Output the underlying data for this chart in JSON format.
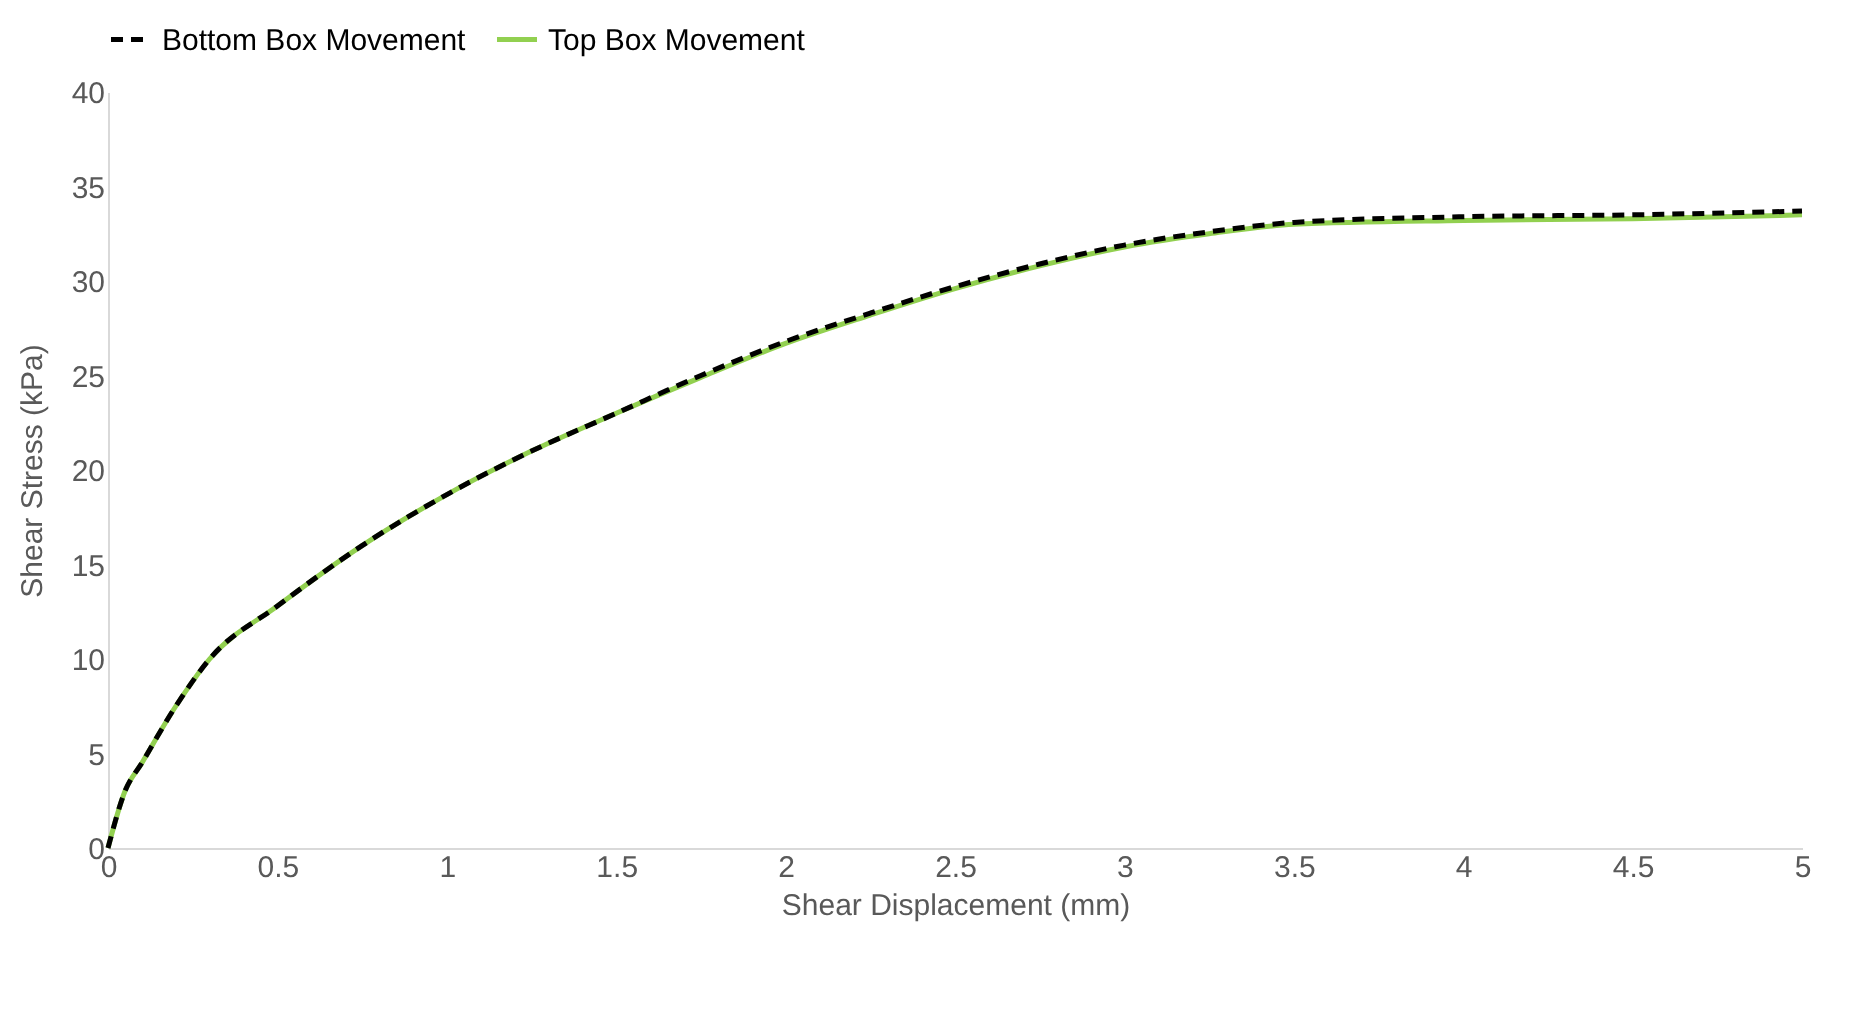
{
  "chart_data": {
    "type": "line",
    "xlabel": "Shear Displacement (mm)",
    "ylabel": "Shear Stress (kPa)",
    "xlim": [
      0,
      5
    ],
    "xticks": [
      0,
      0.5,
      1,
      1.5,
      2,
      2.5,
      3,
      3.5,
      4,
      4.5,
      5
    ],
    "ylim": [
      0,
      40
    ],
    "yticks": [
      0,
      5,
      10,
      15,
      20,
      25,
      30,
      35,
      40
    ],
    "grid": false,
    "legend": "top",
    "marker": "none",
    "x": [
      0,
      0.05,
      0.1,
      0.2,
      0.3,
      0.5,
      0.75,
      1,
      1.25,
      1.5,
      1.75,
      2,
      2.25,
      2.5,
      2.75,
      3,
      3.25,
      3.5,
      4,
      4.5,
      5
    ],
    "series": [
      {
        "name": "Bottom Box Movement",
        "color": "#000000",
        "line_style": "dashed",
        "values": [
          0,
          3,
          4.5,
          7.5,
          10,
          12.8,
          16,
          18.7,
          21,
          23,
          25,
          26.8,
          28.3,
          29.7,
          30.9,
          31.9,
          32.6,
          33.1,
          33.4,
          33.5,
          33.7
        ]
      },
      {
        "name": "Top Box Movement",
        "color": "#92d050",
        "line_style": "solid",
        "values": [
          0,
          3,
          4.5,
          7.5,
          10,
          12.8,
          16,
          18.7,
          21,
          23,
          24.9,
          26.7,
          28.2,
          29.6,
          30.8,
          31.8,
          32.5,
          33,
          33.2,
          33.3,
          33.5
        ]
      }
    ]
  }
}
